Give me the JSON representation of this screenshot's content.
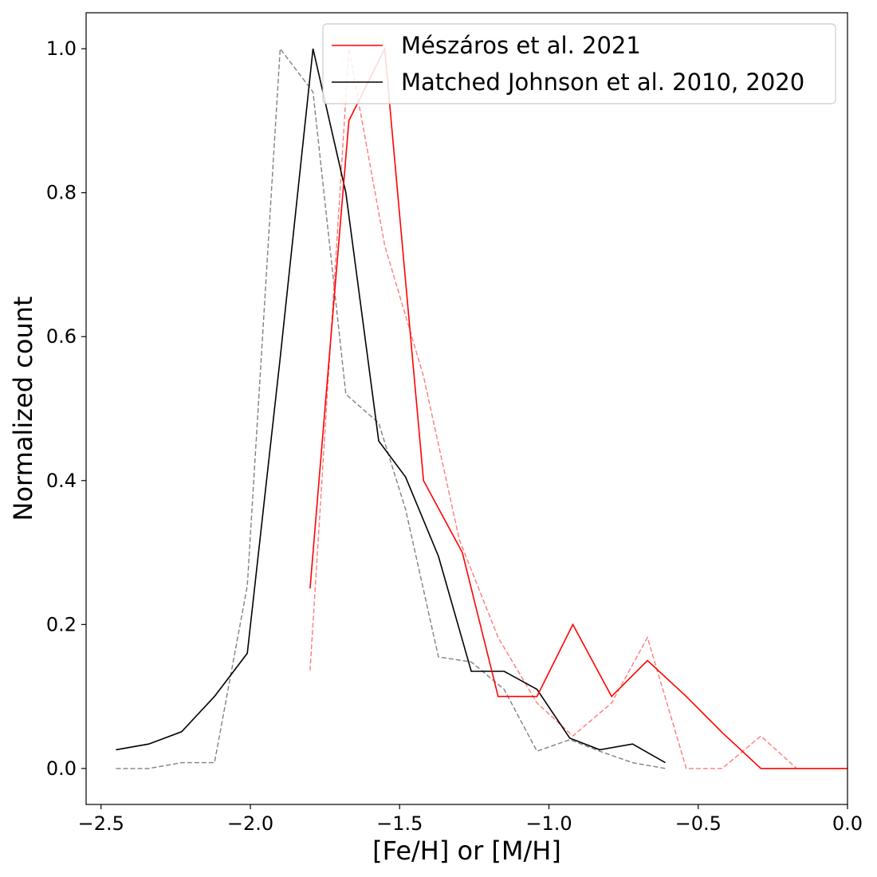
{
  "chart_data": {
    "type": "line",
    "title": "",
    "xlabel": "[Fe/H] or [M/H]",
    "ylabel": "Normalized count",
    "xlim": [
      -2.55,
      0.0
    ],
    "ylim": [
      -0.05,
      1.05
    ],
    "xticks": [
      -2.5,
      -2.0,
      -1.5,
      -1.0,
      -0.5,
      0.0
    ],
    "xtick_labels": [
      "−2.5",
      "−2.0",
      "−1.5",
      "−1.0",
      "−0.5",
      "0.0"
    ],
    "yticks": [
      0.0,
      0.2,
      0.4,
      0.6,
      0.8,
      1.0
    ],
    "ytick_labels": [
      "0.0",
      "0.2",
      "0.4",
      "0.6",
      "0.8",
      "1.0"
    ],
    "grid": false,
    "legend_position": "top-right",
    "series": [
      {
        "name": "Mészáros et al. 2021",
        "color": "#ff0000",
        "style": "solid",
        "x": [
          -1.8,
          -1.67,
          -1.55,
          -1.42,
          -1.29,
          -1.17,
          -1.04,
          -0.92,
          -0.79,
          -0.67,
          -0.54,
          -0.42,
          -0.29,
          -0.17,
          0.0
        ],
        "y": [
          0.25,
          0.9,
          1.0,
          0.4,
          0.3,
          0.1,
          0.1,
          0.2,
          0.1,
          0.15,
          0.1,
          0.05,
          0.0,
          0.0,
          0.0
        ]
      },
      {
        "name": "Matched Johnson et al. 2010, 2020",
        "color": "#000000",
        "style": "solid",
        "x": [
          -2.45,
          -2.34,
          -2.23,
          -2.12,
          -2.01,
          -1.9,
          -1.79,
          -1.68,
          -1.57,
          -1.48,
          -1.37,
          -1.26,
          -1.15,
          -1.04,
          -0.93,
          -0.83,
          -0.72,
          -0.61
        ],
        "y": [
          0.026,
          0.034,
          0.051,
          0.1,
          0.16,
          0.57,
          1.0,
          0.8,
          0.455,
          0.405,
          0.295,
          0.135,
          0.135,
          0.11,
          0.042,
          0.026,
          0.034,
          0.008
        ]
      },
      {
        "name": "",
        "color": "#ff7a7a",
        "style": "dashed",
        "x": [
          -1.8,
          -1.67,
          -1.55,
          -1.42,
          -1.3,
          -1.17,
          -1.04,
          -0.92,
          -0.79,
          -0.67,
          -0.54,
          -0.42,
          -0.29,
          -0.17
        ],
        "y": [
          0.136,
          1.0,
          0.727,
          0.545,
          0.318,
          0.182,
          0.091,
          0.045,
          0.091,
          0.182,
          0.0,
          0.0,
          0.045,
          0.0
        ]
      },
      {
        "name": "",
        "color": "#808080",
        "style": "dashed",
        "x": [
          -2.45,
          -2.34,
          -2.23,
          -2.12,
          -2.01,
          -1.9,
          -1.79,
          -1.68,
          -1.57,
          -1.48,
          -1.37,
          -1.26,
          -1.15,
          -1.04,
          -0.93,
          -0.83,
          -0.72,
          -0.61
        ],
        "y": [
          0.0,
          0.0,
          0.008,
          0.008,
          0.254,
          1.0,
          0.94,
          0.52,
          0.48,
          0.36,
          0.155,
          0.148,
          0.11,
          0.024,
          0.04,
          0.024,
          0.008,
          0.0
        ]
      }
    ]
  }
}
